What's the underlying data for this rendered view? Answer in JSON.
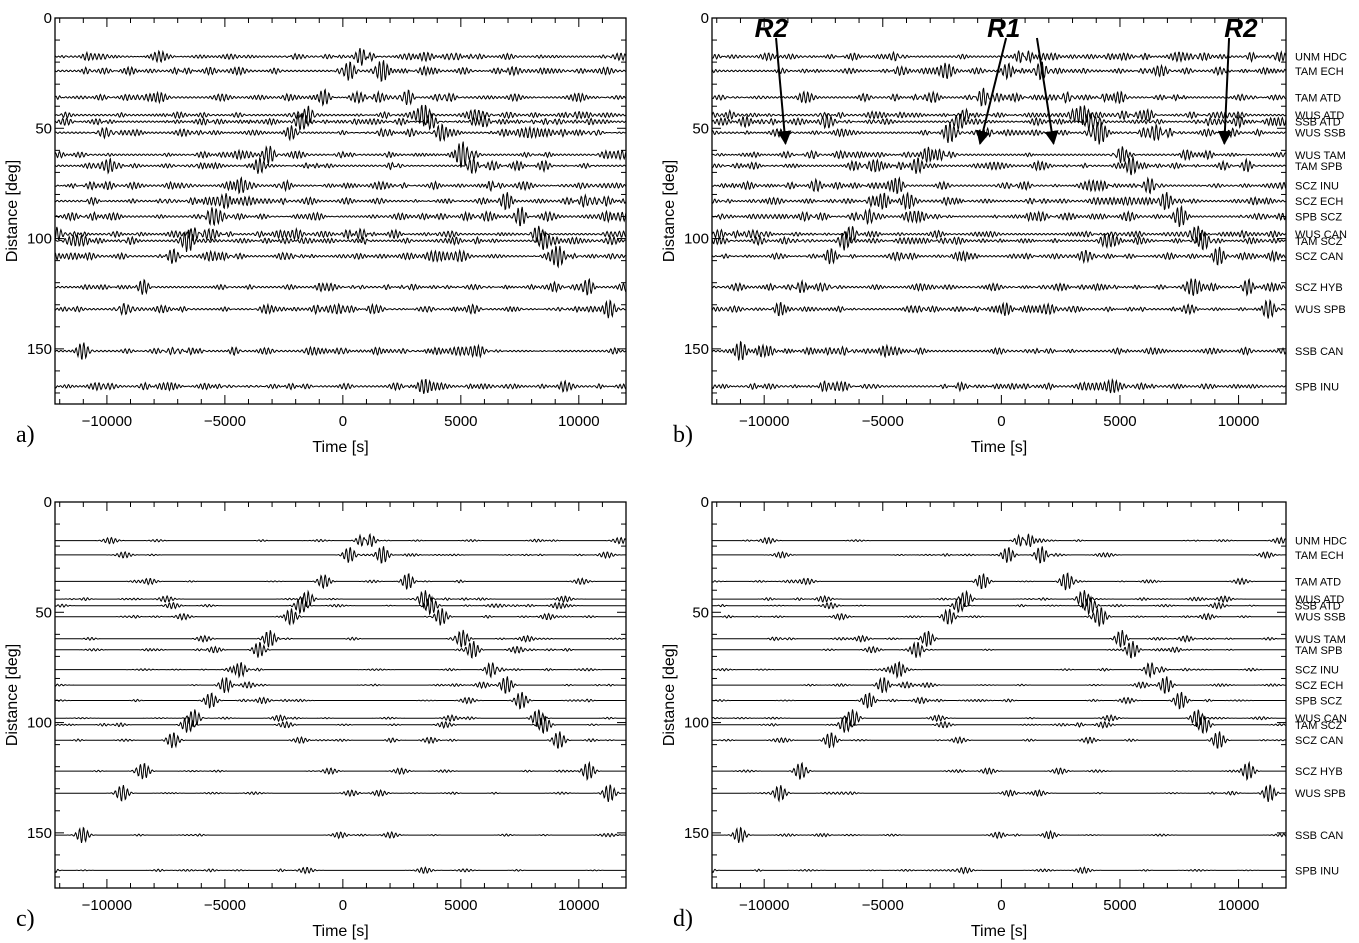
{
  "figure": {
    "x_label": "Time [s]",
    "y_label": "Distance [deg]"
  },
  "chart_data": [
    {
      "panel": "a)",
      "type": "line",
      "xlabel": "Time [s]",
      "ylabel": "Distance [deg]",
      "xlim": [
        -12200,
        12000
      ],
      "ylim": [
        0,
        175
      ],
      "xticks": [
        -10000,
        -5000,
        0,
        5000,
        10000
      ],
      "yticks": [
        0,
        50,
        100,
        150
      ],
      "grid": false,
      "station_labels": false,
      "annotations": []
    },
    {
      "panel": "b)",
      "type": "line",
      "xlabel": "Time [s]",
      "ylabel": "Distance [deg]",
      "xlim": [
        -12200,
        12000
      ],
      "ylim": [
        0,
        175
      ],
      "xticks": [
        -10000,
        -5000,
        0,
        5000,
        10000
      ],
      "yticks": [
        0,
        50,
        100,
        150
      ],
      "grid": false,
      "station_labels": true,
      "annotations": [
        {
          "text": "R2",
          "x": -9100,
          "y": 37
        },
        {
          "text": "R1",
          "x": -900,
          "y": 37
        },
        {
          "text": "R1",
          "x": 2200,
          "y": 37
        },
        {
          "text": "R2",
          "x": 9400,
          "y": 37
        }
      ]
    },
    {
      "panel": "c)",
      "type": "line",
      "xlabel": "Time [s]",
      "ylabel": "Distance [deg]",
      "xlim": [
        -12200,
        12000
      ],
      "ylim": [
        0,
        175
      ],
      "xticks": [
        -10000,
        -5000,
        0,
        5000,
        10000
      ],
      "yticks": [
        0,
        50,
        100,
        150
      ],
      "grid": false,
      "station_labels": false,
      "annotations": []
    },
    {
      "panel": "d)",
      "type": "line",
      "xlabel": "Time [s]",
      "ylabel": "Distance [deg]",
      "xlim": [
        -12200,
        12000
      ],
      "ylim": [
        0,
        175
      ],
      "xticks": [
        -10000,
        -5000,
        0,
        5000,
        10000
      ],
      "yticks": [
        0,
        50,
        100,
        150
      ],
      "grid": false,
      "station_labels": true,
      "annotations": []
    }
  ],
  "traces": [
    {
      "station_pair": "UNM  HDC",
      "distance": 17.5
    },
    {
      "station_pair": "TAM  ECH",
      "distance": 24
    },
    {
      "station_pair": "TAM  ATD",
      "distance": 36
    },
    {
      "station_pair": "WUS  ATD",
      "distance": 44
    },
    {
      "station_pair": "SSB  ATD",
      "distance": 47
    },
    {
      "station_pair": "WUS  SSB",
      "distance": 52
    },
    {
      "station_pair": "WUS  TAM",
      "distance": 62
    },
    {
      "station_pair": "TAM  SPB",
      "distance": 67
    },
    {
      "station_pair": "SCZ  INU",
      "distance": 76
    },
    {
      "station_pair": "SCZ  ECH",
      "distance": 83
    },
    {
      "station_pair": "SPB  SCZ",
      "distance": 90
    },
    {
      "station_pair": "WUS  CAN",
      "distance": 98
    },
    {
      "station_pair": "TAM  SCZ",
      "distance": 101
    },
    {
      "station_pair": "SCZ  CAN",
      "distance": 108
    },
    {
      "station_pair": "SCZ  HYB",
      "distance": 122
    },
    {
      "station_pair": "WUS  SPB",
      "distance": 132
    },
    {
      "station_pair": "SSB  CAN",
      "distance": 151
    },
    {
      "station_pair": "SPB  INU",
      "distance": 167
    }
  ]
}
